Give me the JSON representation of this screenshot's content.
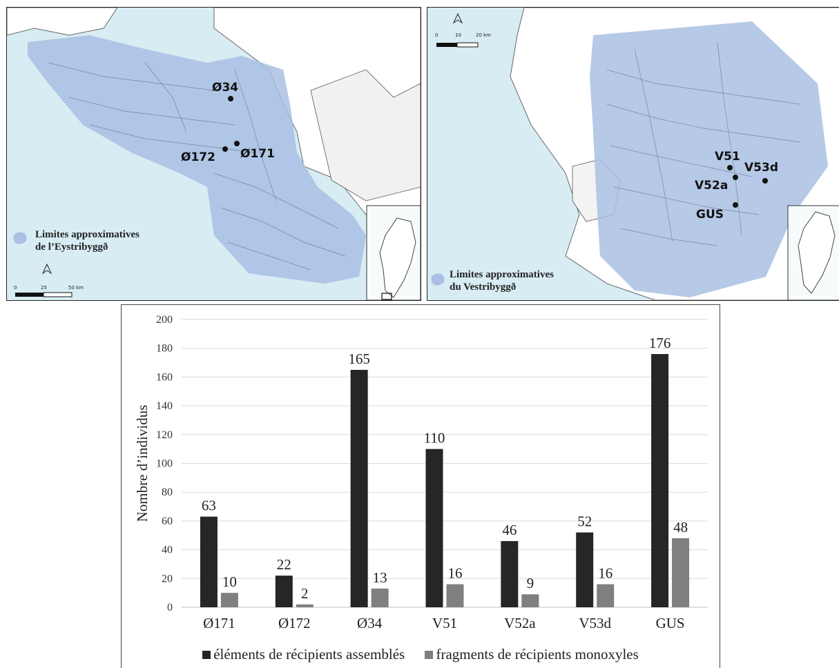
{
  "map_east": {
    "sites": [
      "Ø34",
      "Ø172",
      "Ø171"
    ],
    "legend": [
      "Limites approximatives",
      "de l’Eystribyggð"
    ],
    "scale": [
      "0",
      "25",
      "50 km"
    ]
  },
  "map_west": {
    "sites": [
      "V51",
      "V53d",
      "V52a",
      "GUS"
    ],
    "legend": [
      "Limites approximatives",
      "du Vestribyggð"
    ],
    "scale": [
      "0",
      "10",
      "20 km"
    ]
  },
  "colors": {
    "series1": "#262626",
    "series2": "#7f7f7f",
    "sea": "#d7ecf3",
    "zone": "#a9bfe3"
  },
  "chart_data": {
    "type": "bar",
    "categories": [
      "Ø171",
      "Ø172",
      "Ø34",
      "V51",
      "V52a",
      "V53d",
      "GUS"
    ],
    "series": [
      {
        "name": "éléments de récipients assemblés",
        "values": [
          63,
          22,
          165,
          110,
          46,
          52,
          176
        ]
      },
      {
        "name": "fragments de récipients monoxyles",
        "values": [
          10,
          2,
          13,
          16,
          9,
          16,
          48
        ]
      }
    ],
    "ylabel": "Nombre d’individus",
    "ylim": [
      0,
      200
    ],
    "yticks": [
      0,
      20,
      40,
      60,
      80,
      100,
      120,
      140,
      160,
      180,
      200
    ],
    "grid": true,
    "legend_position": "bottom",
    "data_labels": true
  }
}
